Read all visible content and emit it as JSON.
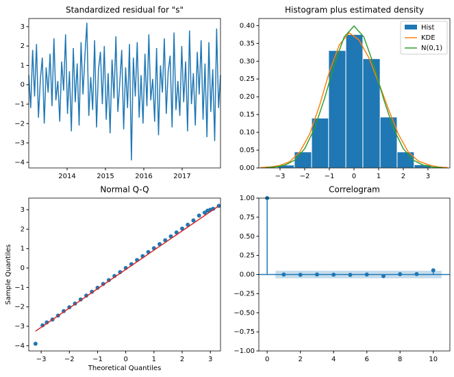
{
  "chart_data": [
    {
      "type": "line",
      "title": "Standardized residual for \"s\"",
      "color": "#1f77b4",
      "values": [
        0.5,
        -1.2,
        1.8,
        -0.6,
        2.1,
        -1.7,
        0.3,
        1.4,
        -2.0,
        0.9,
        -0.4,
        1.6,
        -1.1,
        2.4,
        -0.8,
        0.2,
        -1.9,
        1.2,
        -0.3,
        2.6,
        -1.5,
        0.7,
        -2.4,
        1.9,
        -0.9,
        1.1,
        -2.1,
        2.2,
        -0.5,
        1.5,
        3.2,
        -1.6,
        0.4,
        -1.3,
        2.3,
        -2.2,
        0.8,
        1.7,
        -1.0,
        2.0,
        -1.8,
        0.6,
        -2.5,
        1.3,
        -0.7,
        2.5,
        -1.4,
        0.1,
        1.8,
        -2.3,
        0.9,
        -1.2,
        2.1,
        -3.9,
        1.4,
        -0.6,
        2.2,
        -1.7,
        0.5,
        -2.0,
        1.6,
        -1.1,
        2.6,
        -0.8,
        0.3,
        -1.9,
        1.9,
        -2.6,
        1.0,
        -0.4,
        2.4,
        -1.5,
        0.7,
        1.5,
        -2.2,
        2.7,
        -1.3,
        0.2,
        -1.6,
        2.0,
        -0.9,
        1.2,
        -2.4,
        2.8,
        -1.0,
        0.6,
        -2.1,
        1.7,
        -0.5,
        2.3,
        -1.8,
        1.1,
        -2.7,
        2.2,
        -1.4,
        0.8,
        -2.9,
        2.9,
        -1.2,
        0.5
      ],
      "xlim": [
        2013.0,
        2018.0
      ],
      "xticks": [
        2014,
        2015,
        2016,
        2017
      ],
      "ylim": [
        -4.29,
        3.42
      ],
      "yticks": [
        {
          "value": -4,
          "label": "−4"
        },
        {
          "value": -3,
          "label": "−3"
        },
        {
          "value": -2,
          "label": "−2"
        },
        {
          "value": -1,
          "label": "−1"
        },
        0,
        1,
        2,
        3
      ]
    },
    {
      "type": "histogram",
      "title": "Histogram plus estimated density",
      "name": "Hist",
      "color": "#1f77b4",
      "bins": [
        -3.11,
        -2.42,
        -1.72,
        -1.03,
        -0.33,
        0.36,
        1.06,
        1.75,
        2.44,
        3.14
      ],
      "values": [
        0.008,
        0.045,
        0.14,
        0.33,
        0.375,
        0.307,
        0.143,
        0.045,
        0.009
      ],
      "series": [
        {
          "name": "KDE",
          "color": "#ff7f0e",
          "x": [
            -3.8,
            -3.4,
            -3.0,
            -2.6,
            -2.2,
            -1.8,
            -1.4,
            -1.0,
            -0.6,
            -0.2,
            0.2,
            0.6,
            1.0,
            1.4,
            1.8,
            2.2,
            2.6,
            3.0,
            3.4,
            3.8
          ],
          "values": [
            0.001,
            0.003,
            0.007,
            0.018,
            0.045,
            0.095,
            0.175,
            0.27,
            0.345,
            0.38,
            0.36,
            0.31,
            0.24,
            0.165,
            0.095,
            0.045,
            0.02,
            0.009,
            0.003,
            0.001
          ]
        },
        {
          "name": "N(0,1)",
          "color": "#2ca02c",
          "x": [
            -3.6,
            -3.2,
            -2.8,
            -2.4,
            -2.0,
            -1.6,
            -1.2,
            -0.8,
            -0.4,
            0,
            0.4,
            0.8,
            1.2,
            1.6,
            2.0,
            2.4,
            2.8,
            3.2,
            3.6
          ],
          "values": [
            0.0006,
            0.0024,
            0.008,
            0.022,
            0.054,
            0.111,
            0.194,
            0.29,
            0.368,
            0.399,
            0.368,
            0.29,
            0.194,
            0.111,
            0.054,
            0.022,
            0.008,
            0.0024,
            0.0006
          ]
        }
      ],
      "legend": "upper right",
      "xlim": [
        -3.86,
        3.89
      ],
      "xticks": [
        {
          "value": -3,
          "label": "−3"
        },
        {
          "value": -2,
          "label": "−2"
        },
        {
          "value": -1,
          "label": "−1"
        },
        0,
        1,
        2,
        3
      ],
      "ylim": [
        0,
        0.42
      ],
      "yticks": [
        {
          "value": 0,
          "label": "0.00"
        },
        {
          "value": 0.05,
          "label": "0.05"
        },
        {
          "value": 0.1,
          "label": "0.10"
        },
        {
          "value": 0.15,
          "label": "0.15"
        },
        {
          "value": 0.2,
          "label": "0.20"
        },
        {
          "value": 0.25,
          "label": "0.25"
        },
        {
          "value": 0.3,
          "label": "0.30"
        },
        {
          "value": 0.35,
          "label": "0.35"
        },
        {
          "value": 0.4,
          "label": "0.40"
        }
      ]
    },
    {
      "type": "scatter",
      "title": "Normal Q-Q",
      "xlabel": "Theoretical Quantiles",
      "ylabel": "Sample Quantiles",
      "series": [
        {
          "color": "#1f77b4",
          "x": [
            -3.2,
            -2.95,
            -2.8,
            -2.6,
            -2.4,
            -2.2,
            -2.0,
            -1.8,
            -1.6,
            -1.4,
            -1.2,
            -1.0,
            -0.8,
            -0.6,
            -0.4,
            -0.2,
            0,
            0.2,
            0.4,
            0.6,
            0.8,
            1.0,
            1.2,
            1.4,
            1.6,
            1.8,
            2.0,
            2.2,
            2.4,
            2.6,
            2.8,
            2.9,
            3.0,
            3.1,
            3.3
          ],
          "values": [
            -3.9,
            -2.95,
            -2.8,
            -2.65,
            -2.45,
            -2.22,
            -2.02,
            -1.83,
            -1.62,
            -1.42,
            -1.22,
            -1.02,
            -0.82,
            -0.62,
            -0.41,
            -0.21,
            0,
            0.2,
            0.41,
            0.61,
            0.82,
            1.02,
            1.23,
            1.43,
            1.63,
            1.83,
            2.03,
            2.23,
            2.45,
            2.7,
            2.85,
            2.95,
            3.0,
            3.05,
            3.2
          ]
        },
        {
          "color": "#d62728",
          "style": "line",
          "x": [
            -3.2,
            3.3
          ],
          "values": [
            -3.25,
            3.2
          ]
        }
      ],
      "xlim": [
        -3.44,
        3.36
      ],
      "xticks": [
        {
          "value": -3,
          "label": "−3"
        },
        {
          "value": -2,
          "label": "−2"
        },
        {
          "value": -1,
          "label": "−1"
        },
        0,
        1,
        2,
        3
      ],
      "ylim": [
        -4.27,
        3.6
      ],
      "yticks": [
        {
          "value": -4,
          "label": "−4"
        },
        {
          "value": -3,
          "label": "−3"
        },
        {
          "value": -2,
          "label": "−2"
        },
        {
          "value": -1,
          "label": "−1"
        },
        0,
        1,
        2,
        3
      ]
    },
    {
      "type": "stem",
      "title": "Correlogram",
      "color": "#1f77b4",
      "x": [
        0,
        1,
        2,
        3,
        4,
        5,
        6,
        7,
        8,
        9,
        10
      ],
      "values": [
        1,
        0,
        -0.003,
        0,
        -0.002,
        -0.004,
        0,
        -0.02,
        0.005,
        0.006,
        0.055
      ],
      "confint": [
        -0.05,
        0.05
      ],
      "xlim": [
        -0.5,
        11.0
      ],
      "xticks": [
        0,
        2,
        4,
        6,
        8,
        10
      ],
      "ylim": [
        -1,
        1
      ],
      "yticks": [
        {
          "value": -1,
          "label": "−1.00"
        },
        {
          "value": -0.75,
          "label": "−0.75"
        },
        {
          "value": -0.5,
          "label": "−0.50"
        },
        {
          "value": -0.25,
          "label": "−0.25"
        },
        {
          "value": 0,
          "label": "0.00"
        },
        {
          "value": 0.25,
          "label": "0.25"
        },
        {
          "value": 0.5,
          "label": "0.50"
        },
        {
          "value": 0.75,
          "label": "0.75"
        },
        {
          "value": 1,
          "label": "1.00"
        }
      ]
    }
  ]
}
